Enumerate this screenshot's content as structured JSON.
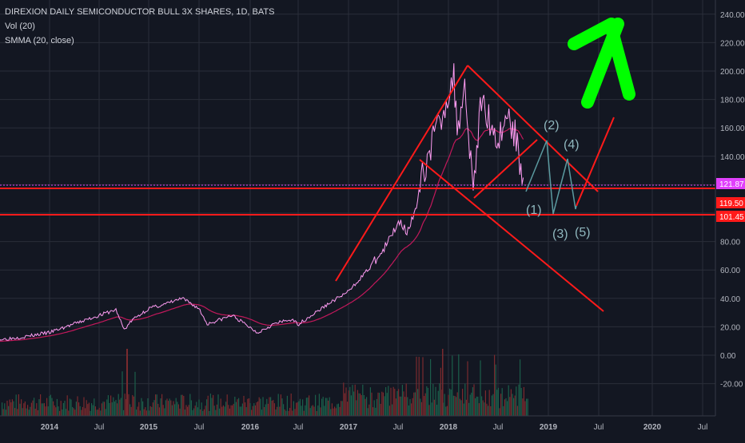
{
  "header": {
    "symbol_line": "DIREXION DAILY SEMICONDUCTOR BULL 3X SHARES, 1D, BATS",
    "indicator_1": "Vol (20)",
    "indicator_2": "SMMA (20, close)"
  },
  "colors": {
    "background": "#131722",
    "grid": "#2a2e39",
    "price_line": "#ff9cf3",
    "smma_line": "#c2185b",
    "drawing_red": "#ff1a1a",
    "wave_line": "#5b9aa0",
    "wave_label": "#8fb7be",
    "arrow_green": "#00ff00",
    "price_tag_1": "#e040fb",
    "price_tag_2": "#ff1a1a",
    "axis_text": "#b2b5be",
    "volume_up": "#1b5e4a",
    "volume_down": "#7a2a2e"
  },
  "chart_data": {
    "type": "line",
    "series": [
      {
        "name": "DIREXION DAILY SEMICONDUCTOR BULL 3X SHARES",
        "x": [
          "2013-07",
          "2013-10",
          "2014-01",
          "2014-04",
          "2014-07",
          "2014-09",
          "2014-10",
          "2014-11",
          "2015-01",
          "2015-03",
          "2015-05",
          "2015-07",
          "2015-08",
          "2015-09",
          "2015-11",
          "2016-01",
          "2016-02",
          "2016-04",
          "2016-06",
          "2016-07",
          "2016-09",
          "2016-11",
          "2017-01",
          "2017-03",
          "2017-05",
          "2017-06",
          "2017-07",
          "2017-08",
          "2017-09",
          "2017-10",
          "2017-11",
          "2017-12",
          "2018-01",
          "2018-01-20",
          "2018-02",
          "2018-03",
          "2018-04",
          "2018-05",
          "2018-06",
          "2018-07",
          "2018-08",
          "2018-09",
          "2018-10"
        ],
        "values": [
          11,
          13,
          16,
          22,
          28,
          32,
          18,
          25,
          33,
          36,
          40,
          33,
          22,
          24,
          28,
          20,
          16,
          22,
          25,
          22,
          30,
          38,
          45,
          58,
          72,
          82,
          95,
          88,
          100,
          130,
          150,
          165,
          185,
          195,
          160,
          190,
          118,
          180,
          165,
          150,
          170,
          155,
          125
        ]
      }
    ],
    "annotations_text": [
      "(1)",
      "(2)",
      "(3)",
      "(4)",
      "(5)"
    ],
    "y_ticks": [
      "240.00",
      "220.00",
      "200.00",
      "180.00",
      "160.00",
      "140.00",
      "80.00",
      "60.00",
      "40.00",
      "20.00",
      "0.00",
      "-20.00"
    ],
    "x_ticks": [
      "2014",
      "Jul",
      "2015",
      "Jul",
      "2016",
      "Jul",
      "2017",
      "Jul",
      "2018",
      "Jul",
      "2019",
      "Jul",
      "2020",
      "Jul"
    ],
    "price_tags": [
      "121.87",
      "119.50",
      "101.45"
    ],
    "ylim": [
      -32,
      246
    ],
    "grid": true
  }
}
